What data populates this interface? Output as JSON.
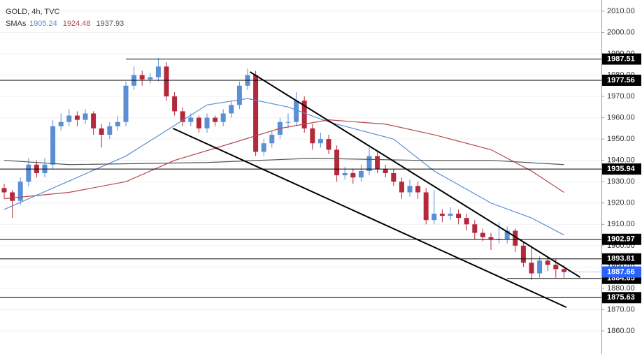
{
  "chart_data": {
    "type": "candlestick",
    "title": "GOLD, 4h, TVC",
    "subtitle": "SMAs",
    "ylim": [
      1849.2,
      2015.2
    ],
    "yticks": [
      {
        "value": 1860,
        "label": "1860.00"
      },
      {
        "value": 1870,
        "label": "1870.00"
      },
      {
        "value": 1880,
        "label": "1880.00"
      },
      {
        "value": 1890,
        "label": "1890.00"
      },
      {
        "value": 1900,
        "label": "1900.00"
      },
      {
        "value": 1910,
        "label": "1910.00"
      },
      {
        "value": 1920,
        "label": "1920.00"
      },
      {
        "value": 1930,
        "label": "1930.00"
      },
      {
        "value": 1940,
        "label": "1940.00"
      },
      {
        "value": 1950,
        "label": "1950.00"
      },
      {
        "value": 1960,
        "label": "1960.00"
      },
      {
        "value": 1970,
        "label": "1970.00"
      },
      {
        "value": 1980,
        "label": "1980.00"
      },
      {
        "value": 1990,
        "label": "1990.00"
      },
      {
        "value": 2000,
        "label": "2000.00"
      },
      {
        "value": 2010,
        "label": "2010.00"
      }
    ],
    "grid": true,
    "up_color": "#5b8fd4",
    "down_color": "#b5283c",
    "ohlc": [
      [
        1927,
        1929,
        1922,
        1925
      ],
      [
        1925,
        1926,
        1913,
        1921
      ],
      [
        1921,
        1932,
        1919,
        1930
      ],
      [
        1930,
        1941,
        1928,
        1938
      ],
      [
        1938,
        1940,
        1932,
        1934
      ],
      [
        1934,
        1941,
        1932,
        1938
      ],
      [
        1938,
        1959,
        1936,
        1956
      ],
      [
        1956,
        1962,
        1954,
        1958
      ],
      [
        1958,
        1964,
        1956,
        1961
      ],
      [
        1961,
        1963,
        1956,
        1959
      ],
      [
        1959,
        1964,
        1957,
        1962
      ],
      [
        1962,
        1963,
        1952,
        1955
      ],
      [
        1955,
        1957,
        1946,
        1952
      ],
      [
        1952,
        1958,
        1950,
        1956
      ],
      [
        1956,
        1961,
        1954,
        1958
      ],
      [
        1958,
        1977,
        1956,
        1975
      ],
      [
        1975,
        1984,
        1973,
        1980
      ],
      [
        1980,
        1982,
        1975,
        1978
      ],
      [
        1978,
        1981,
        1976,
        1979
      ],
      [
        1979,
        1988,
        1977,
        1984
      ],
      [
        1984,
        1986,
        1968,
        1970
      ],
      [
        1970,
        1972,
        1961,
        1963
      ],
      [
        1963,
        1965,
        1956,
        1958
      ],
      [
        1958,
        1962,
        1956,
        1960
      ],
      [
        1960,
        1961,
        1953,
        1955
      ],
      [
        1955,
        1962,
        1953,
        1960
      ],
      [
        1960,
        1961,
        1956,
        1958
      ],
      [
        1958,
        1964,
        1956,
        1962
      ],
      [
        1962,
        1968,
        1960,
        1966
      ],
      [
        1966,
        1977,
        1964,
        1975
      ],
      [
        1975,
        1983,
        1973,
        1980
      ],
      [
        1980,
        1982,
        1942,
        1944
      ],
      [
        1944,
        1950,
        1942,
        1948
      ],
      [
        1948,
        1954,
        1946,
        1952
      ],
      [
        1952,
        1960,
        1950,
        1958
      ],
      [
        1958,
        1962,
        1955,
        1958
      ],
      [
        1958,
        1972,
        1956,
        1968
      ],
      [
        1968,
        1970,
        1953,
        1955
      ],
      [
        1955,
        1957,
        1945,
        1948
      ],
      [
        1948,
        1953,
        1946,
        1950
      ],
      [
        1950,
        1952,
        1943,
        1945
      ],
      [
        1945,
        1947,
        1930,
        1933
      ],
      [
        1933,
        1937,
        1931,
        1934
      ],
      [
        1934,
        1936,
        1929,
        1932
      ],
      [
        1932,
        1938,
        1930,
        1935
      ],
      [
        1935,
        1946,
        1933,
        1942
      ],
      [
        1942,
        1944,
        1934,
        1936
      ],
      [
        1936,
        1938,
        1932,
        1934
      ],
      [
        1934,
        1936,
        1928,
        1930
      ],
      [
        1930,
        1932,
        1922,
        1925
      ],
      [
        1925,
        1931,
        1923,
        1928
      ],
      [
        1928,
        1930,
        1922,
        1925
      ],
      [
        1925,
        1927,
        1910,
        1912
      ],
      [
        1912,
        1926,
        1910,
        1915
      ],
      [
        1915,
        1917,
        1911,
        1914
      ],
      [
        1914,
        1918,
        1912,
        1915
      ],
      [
        1915,
        1917,
        1910,
        1913
      ],
      [
        1913,
        1915,
        1907,
        1910
      ],
      [
        1910,
        1912,
        1903,
        1906
      ],
      [
        1906,
        1908,
        1902,
        1904
      ],
      [
        1904,
        1906,
        1898,
        1903
      ],
      [
        1903,
        1911,
        1901,
        1903
      ],
      [
        1903,
        1909,
        1901,
        1907
      ],
      [
        1907,
        1908,
        1897,
        1900
      ],
      [
        1900,
        1902,
        1890,
        1892
      ],
      [
        1892,
        1900,
        1884,
        1887
      ],
      [
        1887,
        1895,
        1885,
        1893
      ],
      [
        1893,
        1895,
        1888,
        1891
      ],
      [
        1891,
        1894,
        1885,
        1889
      ],
      [
        1889,
        1891,
        1885,
        1887.66
      ]
    ],
    "series": [
      {
        "color": "#5b8fd4",
        "last": 1905.24,
        "x": [
          0,
          15,
          25,
          30,
          35,
          40,
          48,
          53,
          60,
          65,
          69
        ],
        "values": [
          1917,
          1942,
          1966,
          1969,
          1965,
          1958,
          1950,
          1935,
          1920,
          1913,
          1905
        ]
      },
      {
        "color": "#b5484c",
        "last": 1924.48,
        "x": [
          0,
          8,
          15,
          21,
          28,
          34,
          40,
          47,
          53,
          60,
          65,
          69
        ],
        "values": [
          1922,
          1925,
          1930,
          1940,
          1948,
          1955,
          1959,
          1957,
          1952,
          1945,
          1935,
          1925
        ]
      },
      {
        "color": "#555555",
        "last": 1937.93,
        "x": [
          0,
          8,
          25,
          38,
          51,
          60,
          69
        ],
        "values": [
          1940,
          1938,
          1939,
          1941,
          1940,
          1940,
          1938
        ]
      }
    ],
    "levels": [
      {
        "value": 1987.51,
        "from": 15
      },
      {
        "value": 1977.56,
        "from": -1
      },
      {
        "value": 1935.94,
        "from": -1
      },
      {
        "value": 1902.97,
        "from": -1
      },
      {
        "value": 1893.81,
        "from": -1
      },
      {
        "value": 1884.65,
        "from": 62
      },
      {
        "value": 1875.63,
        "from": -1
      }
    ],
    "trendlines": [
      {
        "x": [
          30.3,
          71
        ],
        "y": [
          1981.5,
          1885.2
        ]
      },
      {
        "x": [
          20.8,
          69.3
        ],
        "y": [
          1955,
          1871.1
        ]
      }
    ],
    "last_price": 1887.66,
    "last_color": "#2962ff"
  }
}
